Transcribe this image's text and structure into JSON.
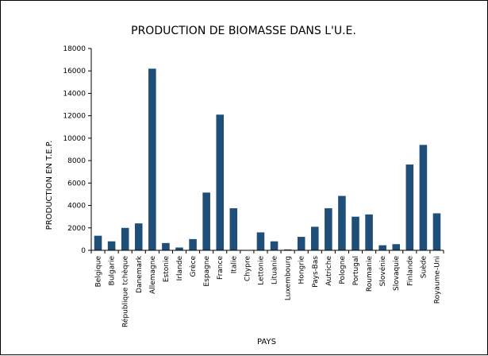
{
  "chart_data": {
    "type": "bar",
    "title": "PRODUCTION DE BIOMASSE DANS L'U.E.",
    "xlabel": "PAYS",
    "ylabel": "PRODUCTION EN T.E.P.",
    "ylim": [
      0,
      18000
    ],
    "yticks": [
      0,
      2000,
      4000,
      6000,
      8000,
      10000,
      12000,
      14000,
      16000,
      18000
    ],
    "grid": false,
    "bar_color": "#1f4e79",
    "categories": [
      "Belgique",
      "Bulgarie",
      "République tchèque",
      "Danemark",
      "Allemagne",
      "Estonie",
      "Irlande",
      "Grèce",
      "Espagne",
      "France",
      "Italie",
      "Chypre",
      "Lettonie",
      "Lituanie",
      "Luxembourg",
      "Hongrie",
      "Pays-Bas",
      "Autriche",
      "Pologne",
      "Portugal",
      "Roumanie",
      "Slovénie",
      "Slovaquie",
      "Finlande",
      "Suède",
      "Royaume-Uni"
    ],
    "values": [
      1300,
      800,
      2000,
      2400,
      16200,
      650,
      250,
      1000,
      5150,
      12100,
      3750,
      20,
      1600,
      800,
      80,
      1200,
      2100,
      3750,
      4850,
      3000,
      3200,
      450,
      550,
      7650,
      9400,
      3300
    ]
  }
}
